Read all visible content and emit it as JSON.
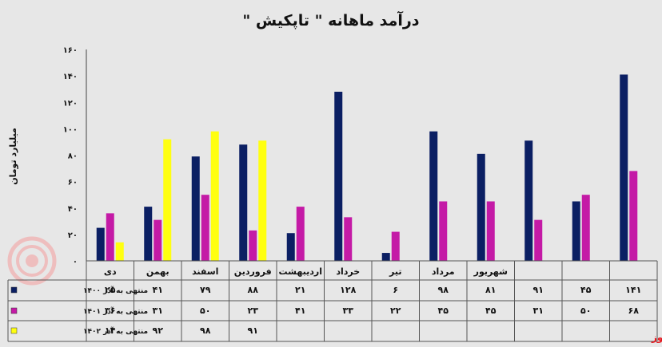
{
  "chart_data": {
    "type": "bar",
    "title": "درآمد ماهانه \" تاپکیش \"",
    "ylabel": "میلیارد تومان",
    "ylim": [
      0,
      160
    ],
    "yticks": [
      "۰",
      "۲۰",
      "۴۰",
      "۶۰",
      "۸۰",
      "۱۰۰",
      "۱۲۰",
      "۱۴۰",
      "۱۶۰"
    ],
    "grid": false,
    "legend": "data-table-left",
    "categories": [
      "دی",
      "بهمن",
      "اسفند",
      "فروردین",
      "اردیبهشت",
      "خرداد",
      "تیر",
      "مرداد",
      "شهریور",
      "",
      "",
      ""
    ],
    "series": [
      {
        "name": "منتهی به آذر ۱۴۰۰",
        "color": "#0b1f63",
        "values": [
          25,
          41,
          79,
          88,
          21,
          128,
          6,
          98,
          81,
          91,
          45,
          141
        ],
        "labels": [
          "۲۵",
          "۴۱",
          "۷۹",
          "۸۸",
          "۲۱",
          "۱۲۸",
          "۶",
          "۹۸",
          "۸۱",
          "۹۱",
          "۴۵",
          "۱۴۱"
        ]
      },
      {
        "name": "منتهی به آذر ۱۴۰۱",
        "color": "#c41aa6",
        "values": [
          36,
          31,
          50,
          23,
          41,
          33,
          22,
          45,
          45,
          31,
          50,
          68
        ],
        "labels": [
          "۳۶",
          "۳۱",
          "۵۰",
          "۲۳",
          "۴۱",
          "۳۳",
          "۲۲",
          "۴۵",
          "۴۵",
          "۳۱",
          "۵۰",
          "۶۸"
        ]
      },
      {
        "name": "منتهی به آذر ۱۴۰۲",
        "color": "#ffff10",
        "values": [
          14,
          92,
          98,
          91,
          null,
          null,
          null,
          null,
          null,
          null,
          null,
          null
        ],
        "labels": [
          "۱۴",
          "۹۲",
          "۹۸",
          "۹۱",
          "",
          "",
          "",
          "",
          "",
          "",
          "",
          ""
        ]
      }
    ]
  },
  "watermark": {
    "text": "بورس نیوز",
    "color": "#e4161d"
  }
}
